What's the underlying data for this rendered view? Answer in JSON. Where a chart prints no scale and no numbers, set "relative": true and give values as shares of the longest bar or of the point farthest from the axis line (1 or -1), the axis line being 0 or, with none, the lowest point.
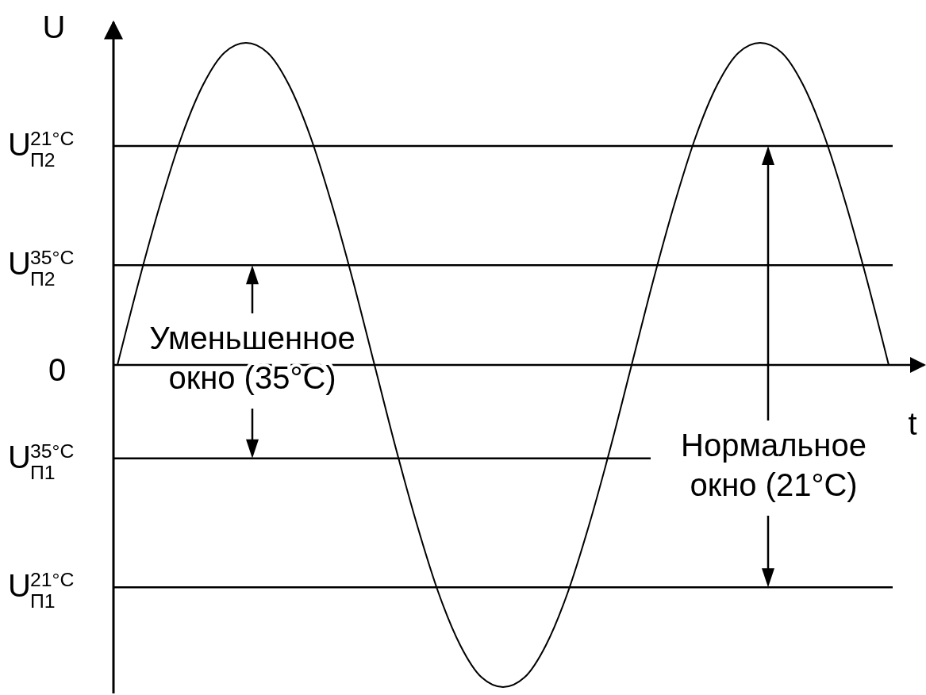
{
  "chart_data": {
    "type": "line",
    "relative": true,
    "xlabel": "t",
    "ylabel": "U",
    "categories": [
      null,
      null,
      null,
      null,
      null,
      null,
      null,
      null,
      null,
      null,
      null,
      null,
      null,
      null,
      null,
      null,
      null,
      null,
      null,
      null,
      null,
      null,
      null,
      null,
      null,
      null,
      null,
      null,
      null,
      null,
      null,
      null,
      null,
      null,
      null,
      null,
      null
    ],
    "series": [
      {
        "color": "#000000",
        "values": [
          0,
          0.26,
          0.5,
          0.71,
          0.87,
          0.97,
          1,
          0.97,
          0.87,
          0.71,
          0.5,
          0.26,
          0,
          -0.26,
          -0.5,
          -0.71,
          -0.87,
          -0.97,
          -1,
          -0.97,
          -0.87,
          -0.71,
          -0.5,
          -0.26,
          0,
          0.26,
          0.5,
          0.71,
          0.87,
          0.97,
          1,
          0.97,
          0.87,
          0.71,
          0.5,
          0.26,
          0
        ]
      }
    ],
    "ref_lines": [
      {
        "axis": "y",
        "value": 0.68,
        "label": "U$^{21°C}$$_{П2}$",
        "color": "#000000"
      },
      {
        "axis": "y",
        "value": 0.31,
        "label": "U$^{35°C}$$_{П2}$",
        "color": "#000000"
      },
      {
        "axis": "y",
        "value": -0.29,
        "label": "U$^{35°C}$$_{П1}$",
        "color": "#000000"
      },
      {
        "axis": "y",
        "value": -0.69,
        "label": "U$^{21°C}$$_{П1}$",
        "color": "#000000"
      }
    ],
    "annotations": [
      "0",
      "Уменьшенное окно (35°C)",
      "Нормальное окно (21°C)"
    ],
    "marker": "none",
    "line_style": "solid"
  }
}
